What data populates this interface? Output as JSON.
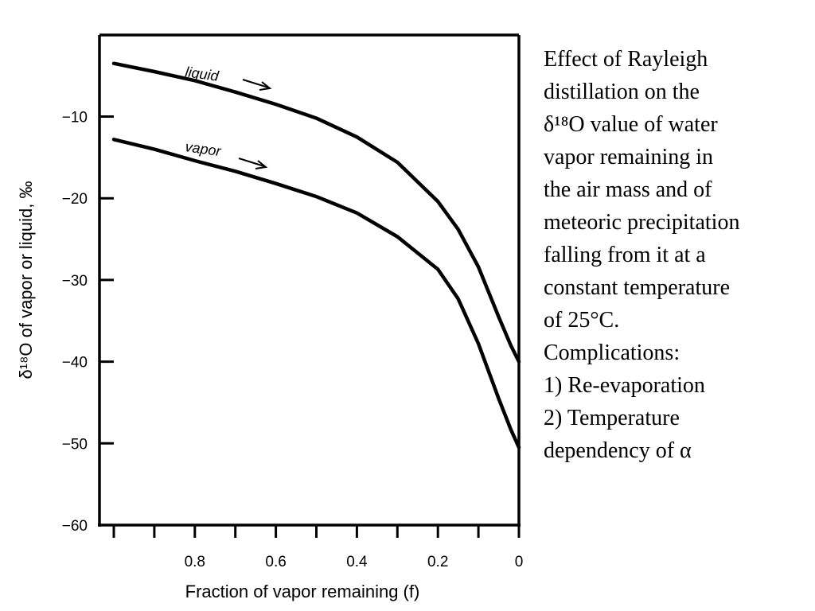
{
  "chart_data": {
    "type": "line",
    "xlabel": "Fraction of vapor remaining (f)",
    "ylabel": "δ¹⁸O of vapor or liquid, ‰",
    "xlim": [
      1.0,
      0.0
    ],
    "ylim": [
      -60,
      0
    ],
    "x_ticks": [
      0.8,
      0.6,
      0.4,
      0.2,
      0
    ],
    "x_tick_labels": [
      "0.8",
      "0.6",
      "0.4",
      "0.2",
      "0"
    ],
    "y_ticks": [
      -10,
      -20,
      -30,
      -40,
      -50,
      -60
    ],
    "y_tick_labels": [
      "−10",
      "−20",
      "−30",
      "−40",
      "−50",
      "−60"
    ],
    "grid": false,
    "series": [
      {
        "name": "liquid",
        "x": [
          1.0,
          0.9,
          0.8,
          0.7,
          0.6,
          0.5,
          0.4,
          0.3,
          0.2,
          0.15,
          0.1,
          0.05,
          0.02,
          0.0
        ],
        "y": [
          -3.5,
          -4.5,
          -5.6,
          -7.0,
          -8.5,
          -10.2,
          -12.5,
          -15.6,
          -20.4,
          -23.8,
          -28.4,
          -34.5,
          -38.0,
          -40.0
        ]
      },
      {
        "name": "vapor",
        "x": [
          1.0,
          0.9,
          0.8,
          0.7,
          0.6,
          0.5,
          0.4,
          0.3,
          0.2,
          0.15,
          0.1,
          0.05,
          0.02,
          0.0
        ],
        "y": [
          -12.8,
          -14.0,
          -15.4,
          -16.7,
          -18.2,
          -19.8,
          -21.8,
          -24.7,
          -28.7,
          -32.3,
          -37.8,
          -44.5,
          -48.3,
          -50.5
        ]
      }
    ]
  },
  "caption": {
    "lines": [
      "Effect of Rayleigh",
      "distillation on the",
      "δ¹⁸O value of water",
      "vapor remaining in",
      "the air mass and of",
      "meteoric precipitation",
      "falling from it at a",
      "constant temperature",
      "of 25°C.",
      "Complications:",
      "1) Re-evaporation",
      "2) Temperature",
      "dependency of α"
    ]
  }
}
